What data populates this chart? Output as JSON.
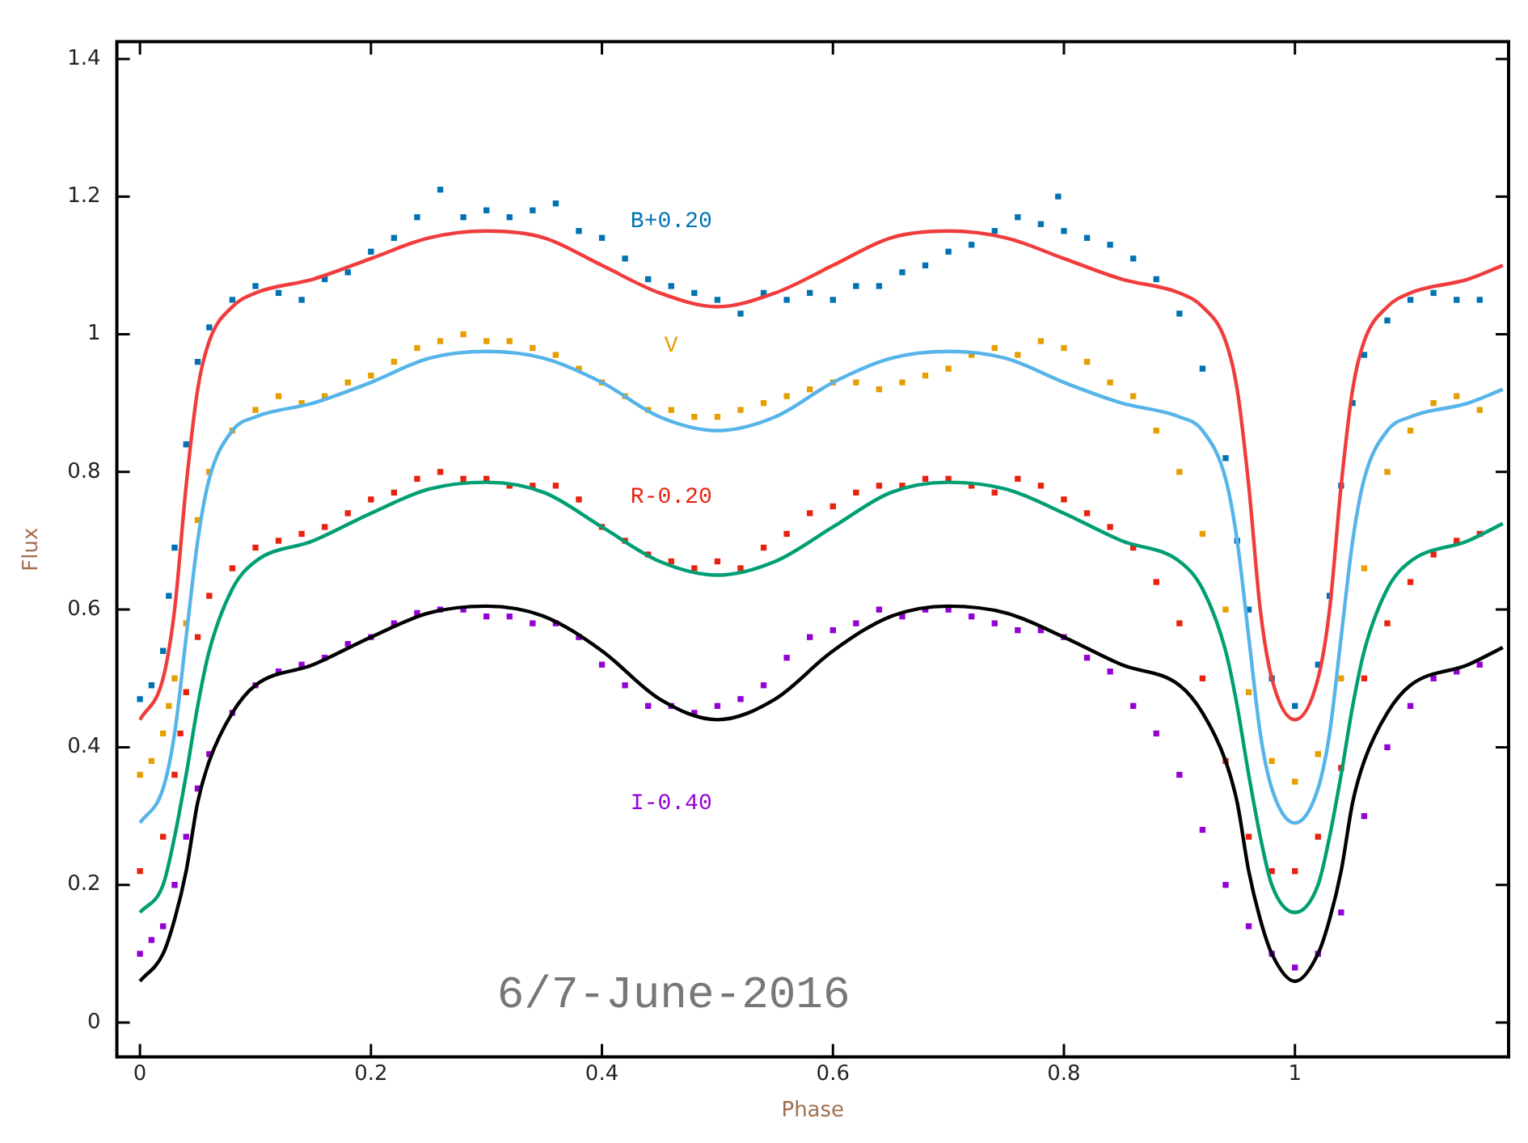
{
  "chart_data": {
    "type": "scatter",
    "xlabel": "Phase",
    "ylabel": "Flux",
    "xlim": [
      -0.02,
      1.185
    ],
    "ylim": [
      -0.05,
      1.425
    ],
    "xticks": [
      0,
      0.2,
      0.4,
      0.6,
      0.8,
      1
    ],
    "yticks": [
      0,
      0.2,
      0.4,
      0.6,
      0.8,
      1,
      1.2,
      1.4
    ],
    "grid": false,
    "legend": false,
    "marker": "square",
    "annotations": [
      "6/7-June-2016"
    ],
    "series": [
      {
        "name": "B+0.20",
        "color": "#0072b2",
        "x": [
          0,
          0.01,
          0.02,
          0.025,
          0.03,
          0.04,
          0.05,
          0.06,
          0.08,
          0.1,
          0.12,
          0.14,
          0.16,
          0.18,
          0.2,
          0.22,
          0.24,
          0.26,
          0.28,
          0.3,
          0.32,
          0.34,
          0.36,
          0.38,
          0.4,
          0.42,
          0.44,
          0.46,
          0.48,
          0.5,
          0.52,
          0.54,
          0.56,
          0.58,
          0.6,
          0.62,
          0.64,
          0.66,
          0.68,
          0.7,
          0.72,
          0.74,
          0.76,
          0.78,
          0.795,
          0.8,
          0.82,
          0.84,
          0.86,
          0.88,
          0.9,
          0.92,
          0.94,
          0.95,
          0.96,
          0.98,
          1,
          1.02,
          1.03,
          1.04,
          1.05,
          1.06,
          1.08,
          1.1,
          1.12,
          1.14,
          1.16
        ],
        "values": [
          0.47,
          0.49,
          0.54,
          0.62,
          0.69,
          0.84,
          0.96,
          1.01,
          1.05,
          1.07,
          1.06,
          1.05,
          1.08,
          1.09,
          1.12,
          1.14,
          1.17,
          1.21,
          1.17,
          1.18,
          1.17,
          1.18,
          1.19,
          1.15,
          1.14,
          1.11,
          1.08,
          1.07,
          1.06,
          1.05,
          1.03,
          1.06,
          1.05,
          1.06,
          1.05,
          1.07,
          1.07,
          1.09,
          1.1,
          1.12,
          1.13,
          1.15,
          1.17,
          1.16,
          1.2,
          1.15,
          1.14,
          1.13,
          1.11,
          1.08,
          1.03,
          0.95,
          0.82,
          0.7,
          0.6,
          0.5,
          0.46,
          0.52,
          0.62,
          0.78,
          0.9,
          0.97,
          1.02,
          1.05,
          1.06,
          1.05,
          1.05
        ]
      },
      {
        "name": "V",
        "color": "#e69f00",
        "x": [
          0,
          0.01,
          0.02,
          0.025,
          0.03,
          0.04,
          0.05,
          0.06,
          0.08,
          0.1,
          0.12,
          0.14,
          0.16,
          0.18,
          0.2,
          0.22,
          0.24,
          0.26,
          0.28,
          0.3,
          0.32,
          0.34,
          0.36,
          0.38,
          0.4,
          0.42,
          0.44,
          0.46,
          0.48,
          0.5,
          0.52,
          0.54,
          0.56,
          0.58,
          0.6,
          0.62,
          0.64,
          0.66,
          0.68,
          0.7,
          0.72,
          0.74,
          0.76,
          0.78,
          0.8,
          0.82,
          0.84,
          0.86,
          0.88,
          0.9,
          0.92,
          0.94,
          0.96,
          0.98,
          1,
          1.02,
          1.04,
          1.06,
          1.08,
          1.1,
          1.12,
          1.14,
          1.16
        ],
        "values": [
          0.36,
          0.38,
          0.42,
          0.46,
          0.5,
          0.58,
          0.73,
          0.8,
          0.86,
          0.89,
          0.91,
          0.9,
          0.91,
          0.93,
          0.94,
          0.96,
          0.98,
          0.99,
          1,
          0.99,
          0.99,
          0.98,
          0.97,
          0.95,
          0.93,
          0.91,
          0.89,
          0.89,
          0.88,
          0.88,
          0.89,
          0.9,
          0.91,
          0.92,
          0.93,
          0.93,
          0.92,
          0.93,
          0.94,
          0.95,
          0.97,
          0.98,
          0.97,
          0.99,
          0.98,
          0.96,
          0.93,
          0.91,
          0.86,
          0.8,
          0.71,
          0.6,
          0.48,
          0.38,
          0.35,
          0.39,
          0.5,
          0.66,
          0.8,
          0.86,
          0.9,
          0.91,
          0.89
        ]
      },
      {
        "name": "R-0.20",
        "color": "#e8220e",
        "x": [
          0,
          0.02,
          0.03,
          0.035,
          0.04,
          0.05,
          0.06,
          0.08,
          0.1,
          0.12,
          0.14,
          0.16,
          0.18,
          0.2,
          0.22,
          0.24,
          0.26,
          0.28,
          0.3,
          0.32,
          0.34,
          0.36,
          0.38,
          0.4,
          0.42,
          0.44,
          0.46,
          0.48,
          0.5,
          0.52,
          0.54,
          0.56,
          0.58,
          0.6,
          0.62,
          0.64,
          0.66,
          0.68,
          0.7,
          0.72,
          0.74,
          0.76,
          0.78,
          0.8,
          0.82,
          0.84,
          0.86,
          0.88,
          0.9,
          0.92,
          0.94,
          0.96,
          0.98,
          1,
          1.02,
          1.04,
          1.06,
          1.08,
          1.1,
          1.12,
          1.14,
          1.16
        ],
        "values": [
          0.22,
          0.27,
          0.36,
          0.42,
          0.48,
          0.56,
          0.62,
          0.66,
          0.69,
          0.7,
          0.71,
          0.72,
          0.74,
          0.76,
          0.77,
          0.79,
          0.8,
          0.79,
          0.79,
          0.78,
          0.78,
          0.78,
          0.76,
          0.72,
          0.7,
          0.68,
          0.67,
          0.66,
          0.67,
          0.66,
          0.69,
          0.71,
          0.74,
          0.75,
          0.77,
          0.78,
          0.78,
          0.79,
          0.79,
          0.78,
          0.77,
          0.79,
          0.78,
          0.76,
          0.74,
          0.72,
          0.69,
          0.64,
          0.58,
          0.5,
          0.38,
          0.27,
          0.22,
          0.22,
          0.27,
          0.37,
          0.5,
          0.58,
          0.64,
          0.68,
          0.7,
          0.71
        ]
      },
      {
        "name": "I-0.40",
        "color": "#9400d3",
        "x": [
          0,
          0.01,
          0.02,
          0.03,
          0.04,
          0.05,
          0.06,
          0.08,
          0.1,
          0.12,
          0.14,
          0.16,
          0.18,
          0.2,
          0.22,
          0.24,
          0.26,
          0.28,
          0.3,
          0.32,
          0.34,
          0.36,
          0.38,
          0.4,
          0.42,
          0.44,
          0.46,
          0.48,
          0.5,
          0.52,
          0.54,
          0.56,
          0.58,
          0.6,
          0.62,
          0.64,
          0.66,
          0.68,
          0.7,
          0.72,
          0.74,
          0.76,
          0.78,
          0.8,
          0.82,
          0.84,
          0.86,
          0.88,
          0.9,
          0.92,
          0.94,
          0.96,
          0.98,
          1,
          1.02,
          1.04,
          1.06,
          1.08,
          1.1,
          1.12,
          1.14,
          1.16
        ],
        "values": [
          0.1,
          0.12,
          0.14,
          0.2,
          0.27,
          0.34,
          0.39,
          0.45,
          0.49,
          0.51,
          0.52,
          0.53,
          0.55,
          0.56,
          0.58,
          0.595,
          0.6,
          0.6,
          0.59,
          0.59,
          0.58,
          0.58,
          0.56,
          0.52,
          0.49,
          0.46,
          0.46,
          0.45,
          0.46,
          0.47,
          0.49,
          0.53,
          0.56,
          0.57,
          0.58,
          0.6,
          0.59,
          0.6,
          0.6,
          0.59,
          0.58,
          0.57,
          0.57,
          0.56,
          0.53,
          0.51,
          0.46,
          0.42,
          0.36,
          0.28,
          0.2,
          0.14,
          0.1,
          0.08,
          0.1,
          0.16,
          0.3,
          0.4,
          0.46,
          0.5,
          0.51,
          0.52
        ]
      },
      {
        "type": "line",
        "marker": "none",
        "color": "#f03c3c",
        "x": [
          0,
          0.02,
          0.03,
          0.04,
          0.05,
          0.06,
          0.08,
          0.1,
          0.15,
          0.2,
          0.25,
          0.3,
          0.35,
          0.4,
          0.45,
          0.5,
          0.55,
          0.6,
          0.65,
          0.7,
          0.75,
          0.8,
          0.85,
          0.9,
          0.92,
          0.94,
          0.95,
          0.96,
          0.97,
          0.98,
          1,
          1.02,
          1.03,
          1.04,
          1.05,
          1.06,
          1.08,
          1.1,
          1.15,
          1.18
        ],
        "values": [
          0.44,
          0.5,
          0.6,
          0.78,
          0.92,
          0.99,
          1.04,
          1.06,
          1.08,
          1.11,
          1.14,
          1.15,
          1.14,
          1.1,
          1.06,
          1.04,
          1.06,
          1.1,
          1.14,
          1.15,
          1.14,
          1.11,
          1.08,
          1.06,
          1.04,
          0.99,
          0.92,
          0.78,
          0.6,
          0.5,
          0.44,
          0.5,
          0.6,
          0.78,
          0.92,
          0.99,
          1.04,
          1.06,
          1.08,
          1.1
        ]
      },
      {
        "type": "line",
        "marker": "none",
        "color": "#56b4e9",
        "x": [
          0,
          0.02,
          0.03,
          0.04,
          0.05,
          0.06,
          0.08,
          0.1,
          0.15,
          0.2,
          0.25,
          0.3,
          0.35,
          0.4,
          0.45,
          0.5,
          0.55,
          0.6,
          0.65,
          0.7,
          0.75,
          0.8,
          0.85,
          0.9,
          0.92,
          0.94,
          0.95,
          0.96,
          0.97,
          0.98,
          1,
          1.02,
          1.03,
          1.04,
          1.05,
          1.06,
          1.08,
          1.1,
          1.15,
          1.18
        ],
        "values": [
          0.29,
          0.34,
          0.42,
          0.56,
          0.7,
          0.79,
          0.86,
          0.88,
          0.9,
          0.93,
          0.965,
          0.975,
          0.965,
          0.93,
          0.88,
          0.86,
          0.88,
          0.93,
          0.965,
          0.975,
          0.965,
          0.93,
          0.9,
          0.88,
          0.86,
          0.79,
          0.7,
          0.56,
          0.42,
          0.34,
          0.29,
          0.34,
          0.42,
          0.56,
          0.7,
          0.79,
          0.86,
          0.88,
          0.9,
          0.92
        ]
      },
      {
        "type": "line",
        "marker": "none",
        "color": "#009e73",
        "x": [
          0,
          0.02,
          0.03,
          0.04,
          0.05,
          0.06,
          0.08,
          0.1,
          0.15,
          0.2,
          0.25,
          0.3,
          0.35,
          0.4,
          0.45,
          0.5,
          0.55,
          0.6,
          0.65,
          0.7,
          0.75,
          0.8,
          0.85,
          0.9,
          0.92,
          0.94,
          0.95,
          0.96,
          0.97,
          0.98,
          1,
          1.02,
          1.03,
          1.04,
          1.05,
          1.06,
          1.08,
          1.1,
          1.15,
          1.18
        ],
        "values": [
          0.16,
          0.2,
          0.27,
          0.36,
          0.46,
          0.54,
          0.63,
          0.67,
          0.7,
          0.74,
          0.775,
          0.785,
          0.77,
          0.72,
          0.67,
          0.65,
          0.67,
          0.72,
          0.77,
          0.785,
          0.775,
          0.74,
          0.7,
          0.67,
          0.63,
          0.54,
          0.46,
          0.36,
          0.27,
          0.2,
          0.16,
          0.2,
          0.27,
          0.36,
          0.46,
          0.54,
          0.63,
          0.67,
          0.7,
          0.725
        ]
      },
      {
        "type": "line",
        "marker": "none",
        "color": "#000000",
        "x": [
          0,
          0.02,
          0.03,
          0.04,
          0.05,
          0.06,
          0.08,
          0.1,
          0.15,
          0.2,
          0.25,
          0.3,
          0.35,
          0.4,
          0.45,
          0.5,
          0.55,
          0.6,
          0.65,
          0.7,
          0.75,
          0.8,
          0.85,
          0.9,
          0.92,
          0.94,
          0.95,
          0.96,
          0.97,
          0.98,
          1,
          1.02,
          1.03,
          1.04,
          1.05,
          1.06,
          1.08,
          1.1,
          1.15,
          1.18
        ],
        "values": [
          0.06,
          0.1,
          0.15,
          0.22,
          0.32,
          0.38,
          0.45,
          0.49,
          0.52,
          0.56,
          0.595,
          0.605,
          0.59,
          0.54,
          0.47,
          0.44,
          0.47,
          0.54,
          0.59,
          0.605,
          0.595,
          0.56,
          0.52,
          0.49,
          0.45,
          0.38,
          0.32,
          0.22,
          0.15,
          0.1,
          0.06,
          0.1,
          0.15,
          0.22,
          0.32,
          0.38,
          0.45,
          0.49,
          0.52,
          0.545
        ]
      }
    ]
  }
}
